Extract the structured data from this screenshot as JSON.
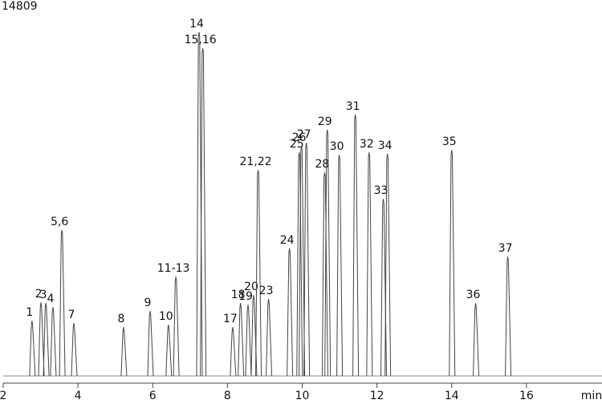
{
  "chart_data": {
    "type": "chromatogram",
    "title": "14809",
    "x_label": "min",
    "labels": [
      "1",
      "2",
      "3",
      "4",
      "5,6",
      "7",
      "8",
      "9",
      "10",
      "11-13",
      "14",
      "15,16",
      "17",
      "18",
      "19",
      "20",
      "21,22",
      "23",
      "24",
      "25",
      "26",
      "27",
      "28",
      "29",
      "30",
      "31",
      "32",
      "33",
      "34",
      "35",
      "36",
      "37"
    ],
    "x": [
      2.77,
      3.01,
      3.14,
      3.33,
      3.57,
      3.89,
      5.22,
      5.93,
      6.42,
      6.62,
      7.24,
      7.34,
      8.14,
      8.35,
      8.55,
      8.7,
      8.82,
      9.1,
      9.66,
      9.92,
      9.98,
      10.11,
      10.6,
      10.67,
      10.99,
      11.42,
      11.79,
      12.17,
      12.28,
      14.0,
      14.64,
      15.5
    ],
    "values": [
      16.1,
      21.4,
      21.2,
      20,
      42.4,
      15.4,
      14.2,
      18.9,
      14.9,
      28.9,
      100,
      95.3,
      14.2,
      21.2,
      20.7,
      23.5,
      59.9,
      22.4,
      37.1,
      65,
      66.9,
      67.8,
      59.2,
      71.6,
      64.3,
      76,
      65,
      51.5,
      64.6,
      65.7,
      21.2,
      34.7
    ],
    "color": "#444444",
    "xlim": [
      2,
      18
    ],
    "xticks": [
      2,
      4,
      6,
      8,
      10,
      12,
      14,
      16
    ],
    "ylim": [
      0,
      100
    ]
  }
}
